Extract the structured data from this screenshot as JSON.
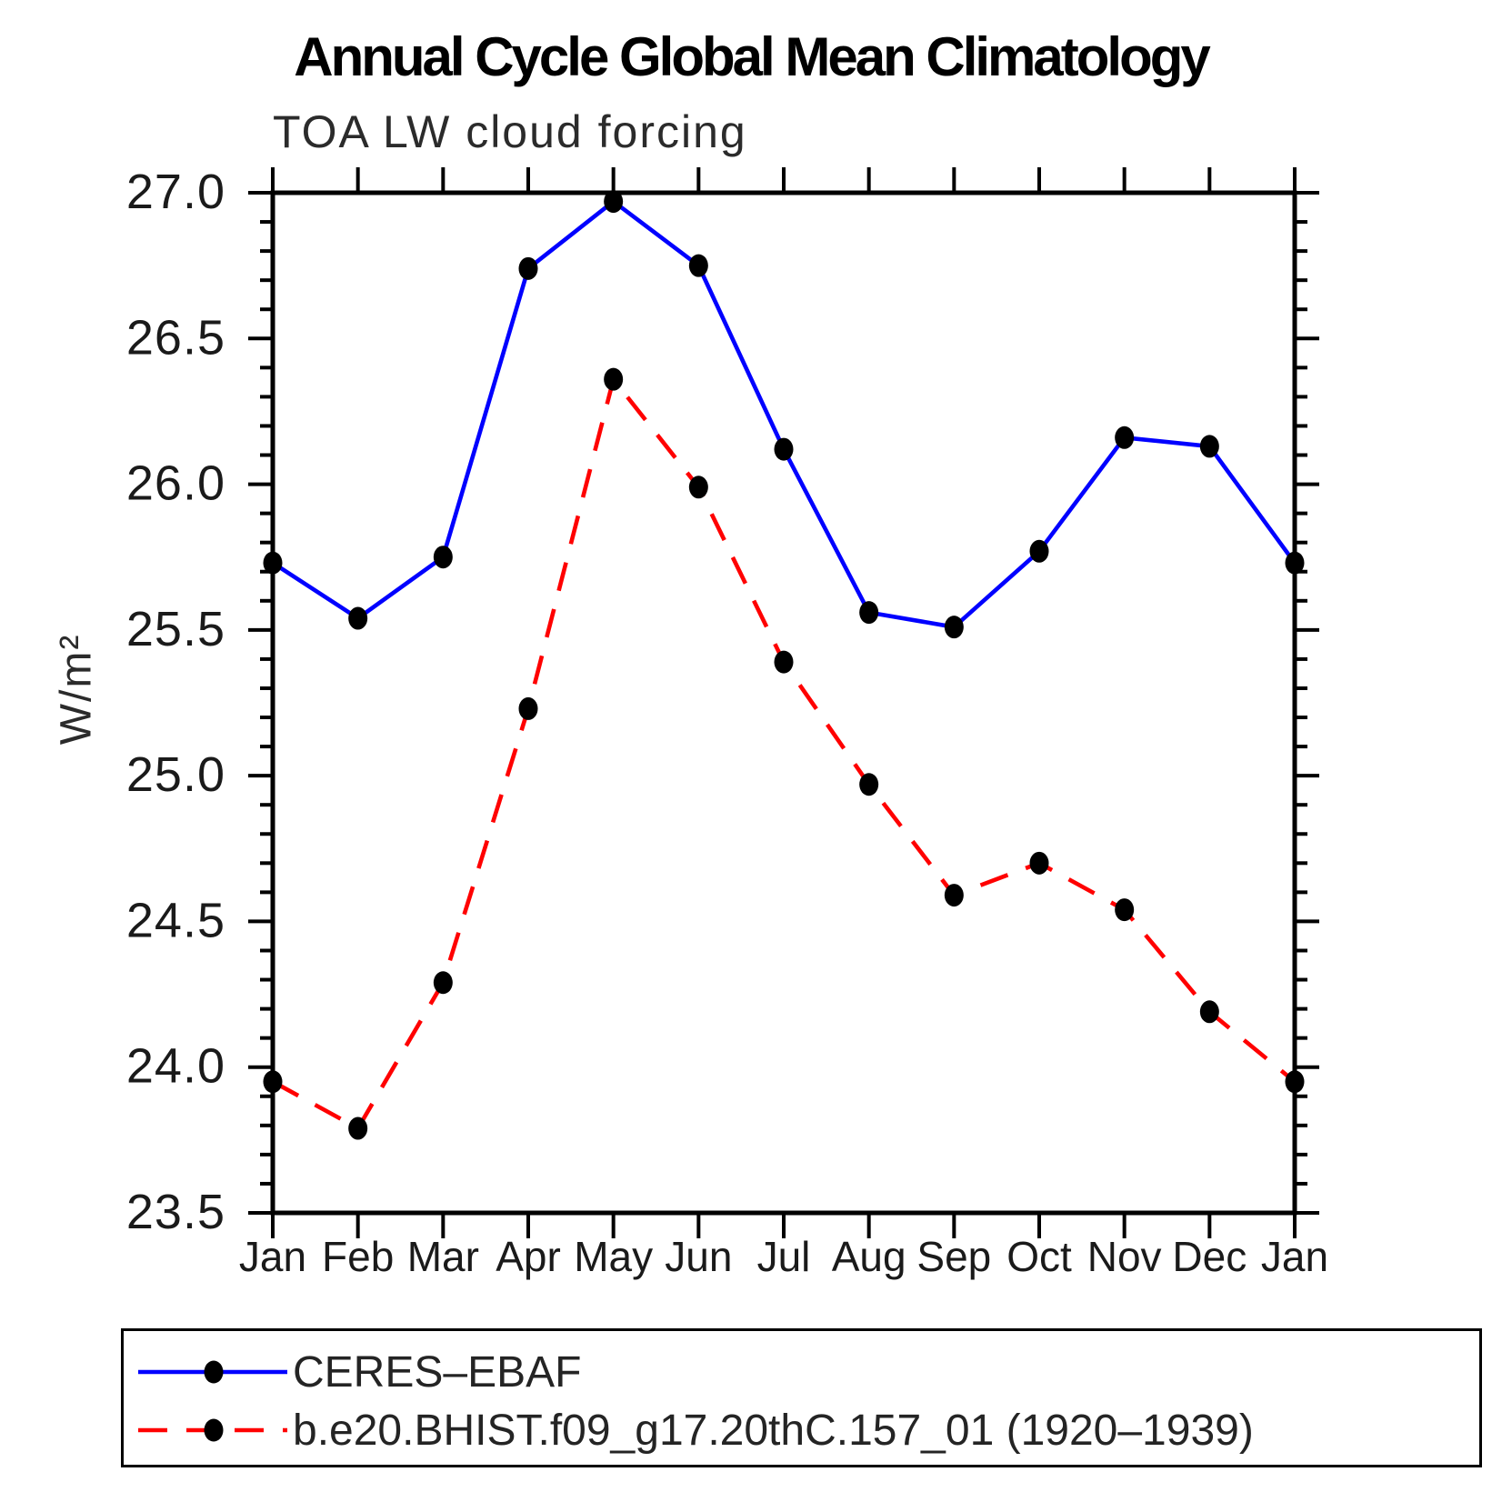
{
  "chart_data": {
    "type": "line",
    "title": "Annual Cycle Global Mean Climatology",
    "subtitle": "TOA LW cloud forcing",
    "ylabel": "W/m²",
    "xlabel": "",
    "categories": [
      "Jan",
      "Feb",
      "Mar",
      "Apr",
      "May",
      "Jun",
      "Jul",
      "Aug",
      "Sep",
      "Oct",
      "Nov",
      "Dec",
      "Jan"
    ],
    "ylim": [
      23.5,
      27.0
    ],
    "ytick_major_step": 0.5,
    "ytick_minor_step": 0.1,
    "ytick_label_format": "one_decimal",
    "grid": false,
    "legend_position": "bottom",
    "frame_color": "#000000",
    "series": [
      {
        "name": "CERES–EBAF",
        "color": "#0000ff",
        "line_style": "solid",
        "marker": "filled-circle",
        "marker_color": "#000000",
        "values": [
          25.73,
          25.54,
          25.75,
          26.74,
          26.97,
          26.75,
          26.12,
          25.56,
          25.51,
          25.77,
          26.16,
          26.13,
          25.73
        ]
      },
      {
        "name": "b.e20.BHIST.f09_g17.20thC.157_01 (1920–1939)",
        "color": "#ff0000",
        "line_style": "dashed",
        "marker": "filled-circle",
        "marker_color": "#000000",
        "values": [
          23.95,
          23.79,
          24.29,
          25.23,
          26.36,
          25.99,
          25.39,
          24.97,
          24.59,
          24.7,
          24.54,
          24.19,
          23.95
        ]
      }
    ]
  }
}
